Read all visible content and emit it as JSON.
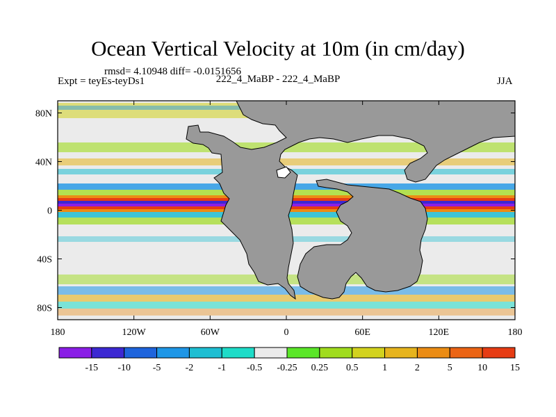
{
  "chart_data": {
    "type": "heatmap",
    "title": "Ocean Vertical Velocity at 10m (in cm/day)",
    "stats_text": "rmsd= 4.10948  diff= -0.0151656",
    "experiment_text": "Expt = teyEs-teyDs1",
    "cases_text": "222_4_MaBP - 222_4_MaBP",
    "season": "JJA",
    "x_axis": {
      "range": [
        -180,
        180
      ],
      "tick_values": [
        -180,
        -120,
        -60,
        0,
        60,
        120,
        180
      ],
      "tick_labels": [
        "180",
        "120W",
        "60W",
        "0",
        "60E",
        "120E",
        "180"
      ]
    },
    "y_axis": {
      "range": [
        -90,
        90
      ],
      "tick_values": [
        80,
        40,
        0,
        -40,
        -80
      ],
      "tick_labels": [
        "80N",
        "40N",
        "0",
        "40S",
        "80S"
      ]
    },
    "colorbar": {
      "labels": [
        "-15",
        "-10",
        "-5",
        "-2",
        "-1",
        "-0.5",
        "-0.25",
        "0.25",
        "0.5",
        "1",
        "2",
        "5",
        "10",
        "15"
      ],
      "colors": [
        "#8a1ee6",
        "#3c28d2",
        "#1e64dc",
        "#1e96e6",
        "#1ebed2",
        "#1edcc8",
        "#ebebeb",
        "#5ae628",
        "#a0dc1e",
        "#d2d21e",
        "#e6b41e",
        "#eb8c14",
        "#eb6414",
        "#e63c14"
      ]
    },
    "land_color": "#999999"
  }
}
